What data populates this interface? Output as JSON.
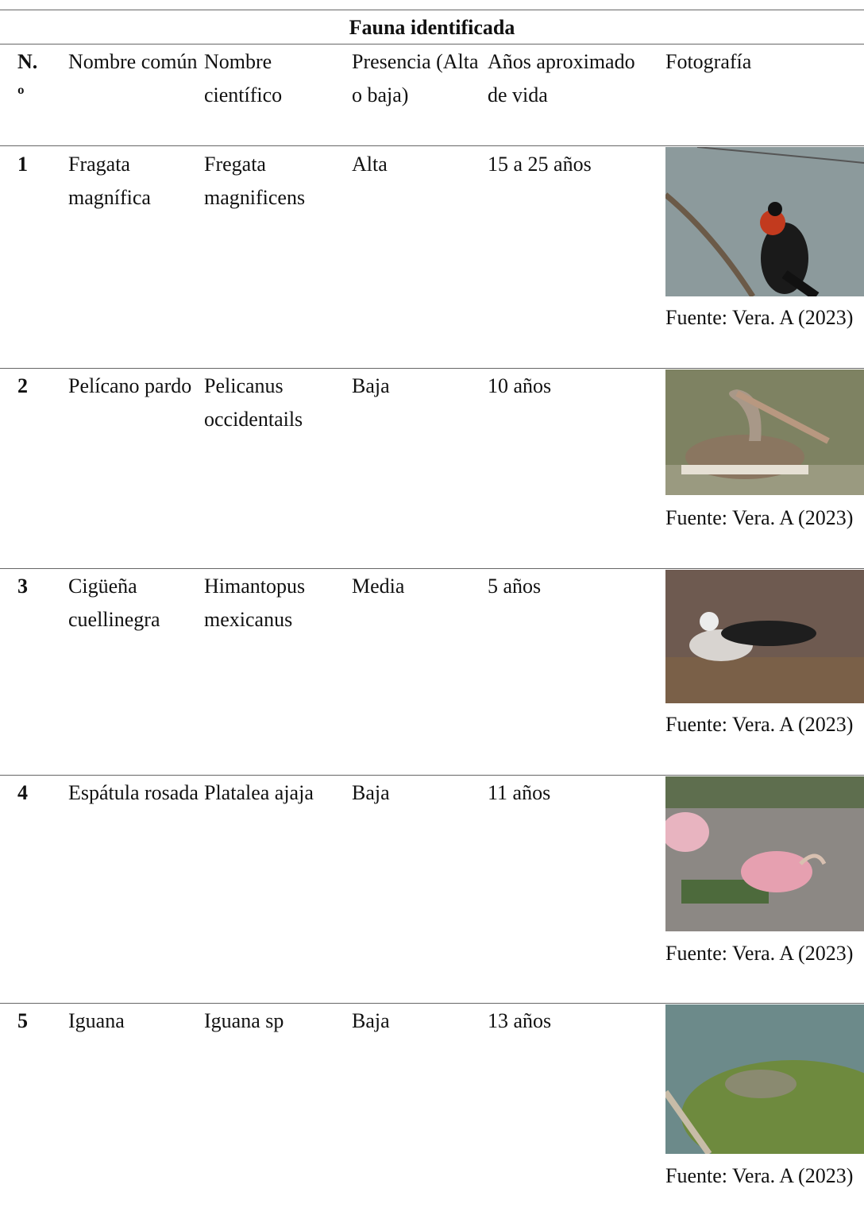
{
  "table": {
    "title": "Fauna identificada",
    "header": [
      "N.º",
      "Nombre común",
      "Nombre científico",
      "Presencia (Alta o baja)",
      "Años aproximado de vida",
      "Fotografía"
    ],
    "rows": [
      [
        "1",
        "Fragata magnífica",
        "Fregata magnificens",
        "Alta",
        "15 a 25 años",
        "Fuente: Vera. A (2023)"
      ],
      [
        "2",
        "Pelícano pardo",
        "Pelicanus occidentails",
        "Baja",
        "10 años",
        "Fuente: Vera. A (2023)"
      ],
      [
        "3",
        "Cigüeña cuellinegra",
        "Himantopus mexicanus",
        "Media",
        "5 años",
        "Fuente: Vera. A (2023)"
      ],
      [
        "4",
        "Espátula rosada",
        "Platalea ajaja",
        "Baja",
        "11 años",
        "Fuente: Vera. A (2023)"
      ],
      [
        "5",
        "Iguana",
        "Iguana sp",
        "Baja",
        "13 años",
        "Fuente: Vera. A (2023)"
      ]
    ]
  }
}
